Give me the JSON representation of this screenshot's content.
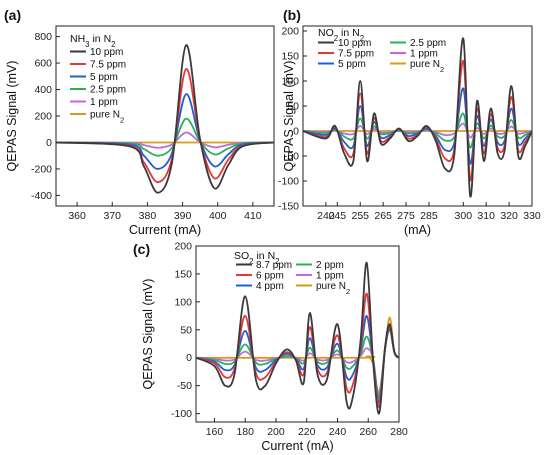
{
  "chart_data": [
    {
      "type": "line",
      "panel": "(a)",
      "title": "NH3 in N2",
      "xlabel": "Current (mA)",
      "ylabel": "QEPAS Signal (mV)",
      "xlim": [
        354,
        416
      ],
      "ylim": [
        -480,
        880
      ],
      "xticks": [
        360,
        370,
        380,
        390,
        400,
        410
      ],
      "yticks": [
        -400,
        -200,
        0,
        200,
        400,
        600,
        800
      ],
      "legend": "top-left",
      "series": [
        {
          "name": "10 ppm",
          "color": "#3a3a3a",
          "x": [
            354,
            375,
            379,
            383,
            387,
            391,
            395,
            399,
            403,
            407,
            416
          ],
          "y": [
            0,
            -30,
            -180,
            -380,
            -150,
            735,
            20,
            -345,
            -170,
            -30,
            0
          ]
        },
        {
          "name": "7.5 ppm",
          "color": "#e5373a",
          "x": [
            354,
            375,
            379,
            383,
            387,
            391,
            395,
            399,
            403,
            407,
            416
          ],
          "y": [
            0,
            -25,
            -150,
            -300,
            -120,
            555,
            15,
            -270,
            -130,
            -25,
            0
          ]
        },
        {
          "name": "5 ppm",
          "color": "#1f5fd6",
          "x": [
            354,
            375,
            379,
            383,
            387,
            391,
            395,
            399,
            403,
            407,
            416
          ],
          "y": [
            0,
            -15,
            -100,
            -200,
            -80,
            365,
            10,
            -180,
            -90,
            -15,
            0
          ]
        },
        {
          "name": "2.5 ppm",
          "color": "#2ab05a",
          "x": [
            354,
            375,
            379,
            383,
            387,
            391,
            395,
            399,
            403,
            407,
            416
          ],
          "y": [
            0,
            -8,
            -50,
            -100,
            -40,
            180,
            5,
            -90,
            -45,
            -8,
            0
          ]
        },
        {
          "name": "1 ppm",
          "color": "#c36ad8",
          "x": [
            354,
            375,
            379,
            383,
            387,
            391,
            395,
            399,
            403,
            407,
            416
          ],
          "y": [
            0,
            -3,
            -20,
            -40,
            -15,
            75,
            2,
            -36,
            -18,
            -3,
            0
          ]
        },
        {
          "name": "pure N2",
          "color": "#d99a1a",
          "x": [
            354,
            416
          ],
          "y": [
            0,
            0
          ]
        }
      ]
    },
    {
      "type": "line",
      "panel": "(b)",
      "title": "NO2 in N2",
      "xlabel": "(mA)",
      "ylabel": "QEPAS Signal (mV)",
      "xlim": [
        230,
        330
      ],
      "ylim": [
        -150,
        210
      ],
      "xticks": [
        240,
        245,
        255,
        265,
        275,
        285,
        300,
        310,
        320,
        330
      ],
      "xticklabels": [
        "240",
        "245",
        "255",
        "265",
        "275",
        "285",
        "300",
        "310",
        "320",
        "330"
      ],
      "yticks": [
        -150,
        -100,
        -50,
        0,
        50,
        100,
        150,
        200
      ],
      "legend": "top-left",
      "series": [
        {
          "name": "10 ppm",
          "color": "#3a3a3a",
          "x": [
            230,
            240,
            244,
            248,
            252,
            255,
            258,
            261,
            264,
            268,
            272,
            276,
            280,
            284,
            288,
            292,
            296,
            300,
            303,
            306,
            309,
            312,
            315,
            318,
            321,
            324,
            327,
            330
          ],
          "y": [
            0,
            -15,
            10,
            -45,
            -60,
            100,
            -60,
            35,
            -25,
            -15,
            5,
            -20,
            -10,
            10,
            -20,
            -75,
            -50,
            185,
            -130,
            60,
            -60,
            45,
            -45,
            -40,
            90,
            -50,
            -30,
            0
          ]
        },
        {
          "name": "7.5 ppm",
          "color": "#e5373a",
          "x": [
            230,
            240,
            244,
            248,
            252,
            255,
            258,
            261,
            264,
            268,
            272,
            276,
            280,
            284,
            288,
            292,
            296,
            300,
            303,
            306,
            309,
            312,
            315,
            318,
            321,
            324,
            327,
            330
          ],
          "y": [
            0,
            -12,
            8,
            -35,
            -45,
            75,
            -45,
            26,
            -20,
            -12,
            4,
            -15,
            -8,
            8,
            -15,
            -55,
            -38,
            140,
            -98,
            45,
            -45,
            34,
            -34,
            -30,
            68,
            -38,
            -22,
            0
          ]
        },
        {
          "name": "5 ppm",
          "color": "#1f5fd6",
          "x": [
            230,
            240,
            244,
            248,
            252,
            255,
            258,
            261,
            264,
            268,
            272,
            276,
            280,
            284,
            288,
            292,
            296,
            300,
            303,
            306,
            309,
            312,
            315,
            318,
            321,
            324,
            327,
            330
          ],
          "y": [
            0,
            -8,
            5,
            -22,
            -30,
            50,
            -30,
            18,
            -13,
            -8,
            3,
            -10,
            -5,
            5,
            -10,
            -38,
            -25,
            85,
            -65,
            30,
            -30,
            23,
            -23,
            -20,
            45,
            -25,
            -15,
            0
          ]
        },
        {
          "name": "2.5 ppm",
          "color": "#2ab05a",
          "x": [
            230,
            240,
            244,
            248,
            252,
            255,
            258,
            261,
            264,
            268,
            272,
            276,
            280,
            284,
            288,
            292,
            296,
            300,
            303,
            306,
            309,
            312,
            315,
            318,
            321,
            324,
            327,
            330
          ],
          "y": [
            0,
            -4,
            3,
            -11,
            -15,
            25,
            -15,
            9,
            -6,
            -4,
            1,
            -5,
            -3,
            3,
            -5,
            -19,
            -13,
            35,
            -33,
            15,
            -15,
            11,
            -11,
            -10,
            22,
            -13,
            -8,
            0
          ]
        },
        {
          "name": "1 ppm",
          "color": "#c36ad8",
          "x": [
            230,
            240,
            244,
            248,
            252,
            255,
            258,
            261,
            264,
            268,
            272,
            276,
            280,
            284,
            288,
            292,
            296,
            300,
            303,
            306,
            309,
            312,
            315,
            318,
            321,
            324,
            327,
            330
          ],
          "y": [
            0,
            -2,
            1,
            -5,
            -6,
            10,
            -6,
            4,
            -3,
            -2,
            0,
            -2,
            -1,
            1,
            -2,
            -8,
            -5,
            15,
            -13,
            6,
            -6,
            5,
            -5,
            -4,
            9,
            -5,
            -3,
            0
          ]
        },
        {
          "name": "pure N2",
          "color": "#d99a1a",
          "x": [
            230,
            330
          ],
          "y": [
            0,
            0
          ]
        }
      ]
    },
    {
      "type": "line",
      "panel": "(c)",
      "title": "SO2 in N2",
      "xlabel": "Current (mA)",
      "ylabel": "QEPAS Signal (mV)",
      "xlim": [
        148,
        280
      ],
      "ylim": [
        -115,
        200
      ],
      "xticks": [
        160,
        180,
        200,
        220,
        240,
        260,
        280
      ],
      "yticks": [
        -100,
        -50,
        0,
        50,
        100,
        150,
        200
      ],
      "legend": "top-left",
      "series": [
        {
          "name": "8.7 ppm",
          "color": "#3a3a3a",
          "x": [
            148,
            160,
            167,
            173,
            180,
            187,
            193,
            200,
            207,
            213,
            218,
            222,
            227,
            233,
            240,
            246,
            250,
            255,
            259,
            263,
            267,
            271,
            274,
            277,
            280
          ],
          "y": [
            0,
            -15,
            -50,
            -30,
            110,
            -40,
            -50,
            -10,
            15,
            -5,
            -45,
            80,
            -30,
            -40,
            60,
            -80,
            -70,
            30,
            170,
            0,
            -100,
            20,
            60,
            10,
            0
          ]
        },
        {
          "name": "6 ppm",
          "color": "#e5373a",
          "x": [
            148,
            160,
            167,
            173,
            180,
            187,
            193,
            200,
            207,
            213,
            218,
            222,
            227,
            233,
            240,
            246,
            250,
            255,
            259,
            263,
            267,
            271,
            274,
            277,
            280
          ],
          "y": [
            0,
            -10,
            -35,
            -20,
            75,
            -28,
            -35,
            -7,
            10,
            -3,
            -30,
            55,
            -20,
            -28,
            40,
            -55,
            -48,
            20,
            115,
            0,
            -88,
            20,
            55,
            10,
            0
          ]
        },
        {
          "name": "4 ppm",
          "color": "#1f5fd6",
          "x": [
            148,
            160,
            167,
            173,
            180,
            187,
            193,
            200,
            207,
            213,
            218,
            222,
            227,
            233,
            240,
            246,
            250,
            255,
            259,
            263,
            267,
            271,
            274,
            277,
            280
          ],
          "y": [
            0,
            -7,
            -22,
            -13,
            48,
            -18,
            -22,
            -4,
            7,
            -2,
            -20,
            35,
            -13,
            -18,
            25,
            -35,
            -30,
            13,
            75,
            0,
            -80,
            18,
            52,
            10,
            0
          ]
        },
        {
          "name": "2 ppm",
          "color": "#2ab05a",
          "x": [
            148,
            160,
            167,
            173,
            180,
            187,
            193,
            200,
            207,
            213,
            218,
            222,
            227,
            233,
            240,
            246,
            250,
            255,
            259,
            263,
            267,
            271,
            274,
            277,
            280
          ],
          "y": [
            0,
            -4,
            -11,
            -7,
            24,
            -9,
            -11,
            -2,
            3,
            -1,
            -10,
            18,
            -7,
            -9,
            13,
            -18,
            -15,
            7,
            38,
            0,
            -72,
            18,
            50,
            10,
            0
          ]
        },
        {
          "name": "1 ppm",
          "color": "#c36ad8",
          "x": [
            148,
            160,
            167,
            173,
            180,
            187,
            193,
            200,
            207,
            213,
            218,
            222,
            227,
            233,
            240,
            246,
            250,
            255,
            259,
            263,
            267,
            271,
            274,
            277,
            280
          ],
          "y": [
            0,
            -2,
            -5,
            -3,
            11,
            -4,
            -5,
            -1,
            2,
            0,
            -5,
            8,
            -3,
            -4,
            6,
            -8,
            -7,
            3,
            17,
            0,
            -68,
            18,
            50,
            10,
            0
          ]
        },
        {
          "name": "pure N2",
          "color": "#d99a1a",
          "x": [
            148,
            255,
            259,
            263,
            267,
            271,
            274,
            277,
            280
          ],
          "y": [
            0,
            0,
            2,
            -10,
            -62,
            15,
            72,
            10,
            0
          ]
        }
      ]
    }
  ]
}
